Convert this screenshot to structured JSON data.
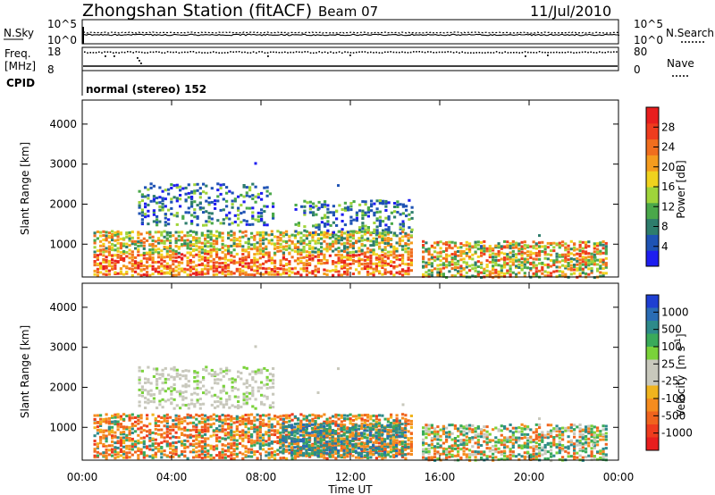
{
  "header": {
    "station": "Zhongshan Station (fitACF)",
    "beam": "Beam 07",
    "date": "11/Jul/2010"
  },
  "nsky_panel": {
    "left_label": "N.Sky",
    "right_label": "N.Search",
    "left_ticks": [
      "10^5",
      "10^0"
    ],
    "right_ticks": [
      "10^5",
      "10^0"
    ]
  },
  "freq_panel": {
    "left_label": "Freq.",
    "left_unit": "[MHz]",
    "right_label": "Nave",
    "left_ticks": [
      "18",
      "8"
    ],
    "right_ticks": [
      "80",
      "0"
    ]
  },
  "cpid": {
    "label": "CPID",
    "value": "normal (stereo) 152"
  },
  "chart_data": [
    {
      "type": "heatmap",
      "parameter": "Power",
      "ylabel": "Slant Range [km]",
      "xlabel": "",
      "xlim": [
        "00:00",
        "24:00"
      ],
      "ylim": [
        180,
        4600
      ],
      "y_ticks": [
        "1000",
        "2000",
        "3000",
        "4000"
      ],
      "x_ticks": [
        "00:00",
        "04:00",
        "08:00",
        "12:00",
        "16:00",
        "20:00",
        "00:00"
      ],
      "colorbar": {
        "label": "Power [dB]",
        "ticks": [
          "4",
          "8",
          "12",
          "16",
          "20",
          "24",
          "28"
        ],
        "colors": [
          "#1e1ef0",
          "#1f53b4",
          "#2e7d6c",
          "#4aa84a",
          "#9fd43a",
          "#f0d21e",
          "#f59c1e",
          "#f06e1e",
          "#ee3c1e",
          "#e81e1e"
        ]
      },
      "regions": [
        {
          "t0": 0.5,
          "t1": 14.7,
          "r0": 250,
          "r1": 1350,
          "level": "high"
        },
        {
          "t0": 15.2,
          "t1": 23.5,
          "r0": 200,
          "r1": 1100,
          "level": "medium"
        },
        {
          "t0": 2.5,
          "t1": 8.5,
          "r0": 1500,
          "r1": 2500,
          "level": "low"
        },
        {
          "t0": 9.5,
          "t1": 14.8,
          "r0": 1300,
          "r1": 2100,
          "level": "low"
        }
      ]
    },
    {
      "type": "heatmap",
      "parameter": "Velocity",
      "ylabel": "Slant Range [km]",
      "xlabel": "Time UT",
      "xlim": [
        "00:00",
        "24:00"
      ],
      "ylim": [
        180,
        4600
      ],
      "y_ticks": [
        "1000",
        "2000",
        "3000",
        "4000"
      ],
      "x_ticks": [
        "00:00",
        "04:00",
        "08:00",
        "12:00",
        "16:00",
        "20:00",
        "00:00"
      ],
      "colorbar": {
        "label": "Velocity",
        "unit": "[m s",
        "unit_exp": "-1",
        "unit_close": "]",
        "ticks": [
          "1000",
          "500",
          "100",
          "25",
          "-25",
          "-100",
          "-500",
          "-1000"
        ],
        "colors": [
          "#1e3fd2",
          "#2a6cb4",
          "#2e8a8a",
          "#3aaa5a",
          "#7ad23a",
          "#c8c8bc",
          "#c8c8bc",
          "#f0b41e",
          "#f58c1e",
          "#f0641e",
          "#ee3c1e",
          "#e81e1e"
        ]
      },
      "regions": [
        {
          "t0": 0.5,
          "t1": 14.7,
          "r0": 250,
          "r1": 1350,
          "level": "negative"
        },
        {
          "t0": 8.8,
          "t1": 14.5,
          "r0": 300,
          "r1": 1100,
          "level": "positive"
        },
        {
          "t0": 15.2,
          "t1": 23.5,
          "r0": 200,
          "r1": 1100,
          "level": "mixed"
        },
        {
          "t0": 2.5,
          "t1": 8.5,
          "r0": 1500,
          "r1": 2500,
          "level": "near-zero"
        }
      ]
    }
  ]
}
